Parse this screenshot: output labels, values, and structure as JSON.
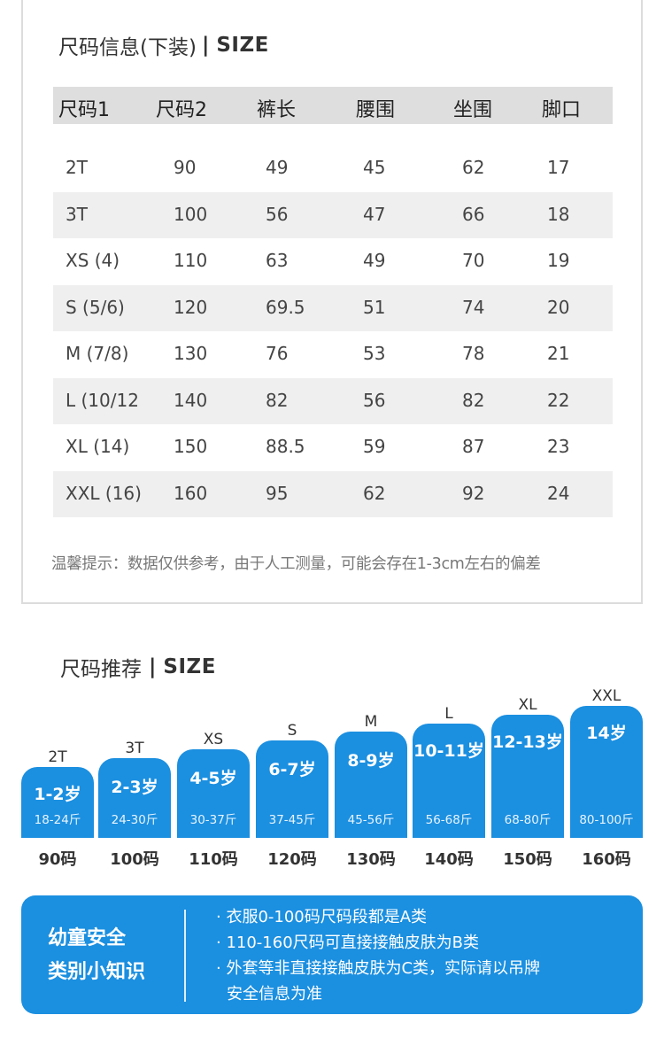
{
  "size_table": {
    "title_cn": "尺码信息(下装)",
    "title_sep": "|",
    "title_en": "SIZE",
    "headers": [
      "尺码1",
      "尺码2",
      "裤长",
      "腰围",
      "坐围",
      "脚口"
    ],
    "rows": [
      [
        "2T",
        "90",
        "49",
        "45",
        "62",
        "17"
      ],
      [
        "3T",
        "100",
        "56",
        "47",
        "66",
        "18"
      ],
      [
        "XS (4)",
        "110",
        "63",
        "49",
        "70",
        "19"
      ],
      [
        "S (5/6)",
        "120",
        "69.5",
        "51",
        "74",
        "20"
      ],
      [
        "M (7/8)",
        "130",
        "76",
        "53",
        "78",
        "21"
      ],
      [
        "L (10/12",
        "140",
        "82",
        "56",
        "82",
        "22"
      ],
      [
        "XL (14)",
        "150",
        "88.5",
        "59",
        "87",
        "23"
      ],
      [
        "XXL (16)",
        "160",
        "95",
        "62",
        "92",
        "24"
      ]
    ],
    "tip": "温馨提示：数据仅供参考，由于人工测量，可能会存在1-3cm左右的偏差"
  },
  "recommend": {
    "title_cn": "尺码推荐",
    "title_sep": "|",
    "title_en": "SIZE",
    "bars": [
      {
        "size": "2T",
        "age": "1-2岁",
        "weight": "18-24斤",
        "height": "90码"
      },
      {
        "size": "3T",
        "age": "2-3岁",
        "weight": "24-30斤",
        "height": "100码"
      },
      {
        "size": "XS",
        "age": "4-5岁",
        "weight": "30-37斤",
        "height": "110码"
      },
      {
        "size": "S",
        "age": "6-7岁",
        "weight": "37-45斤",
        "height": "120码"
      },
      {
        "size": "M",
        "age": "8-9岁",
        "weight": "45-56斤",
        "height": "130码"
      },
      {
        "size": "L",
        "age": "10-11岁",
        "weight": "56-68斤",
        "height": "140码"
      },
      {
        "size": "XL",
        "age": "12-13岁",
        "weight": "68-80斤",
        "height": "150码"
      },
      {
        "size": "XXL",
        "age": "14岁",
        "weight": "80-100斤",
        "height": "160码"
      }
    ]
  },
  "safety": {
    "heading_line1": "幼童安全",
    "heading_line2": "类别小知识",
    "items": [
      "· 衣服0-100码尺码段都是A类",
      "· 110-160尺码可直接接触皮肤为B类",
      "· 外套等非直接接触皮肤为C类，实际请以吊牌",
      "  安全信息为准"
    ]
  },
  "colors": {
    "accent_blue": "#1b8fe0",
    "header_gray": "#dedede",
    "row_shade": "#efefef"
  }
}
